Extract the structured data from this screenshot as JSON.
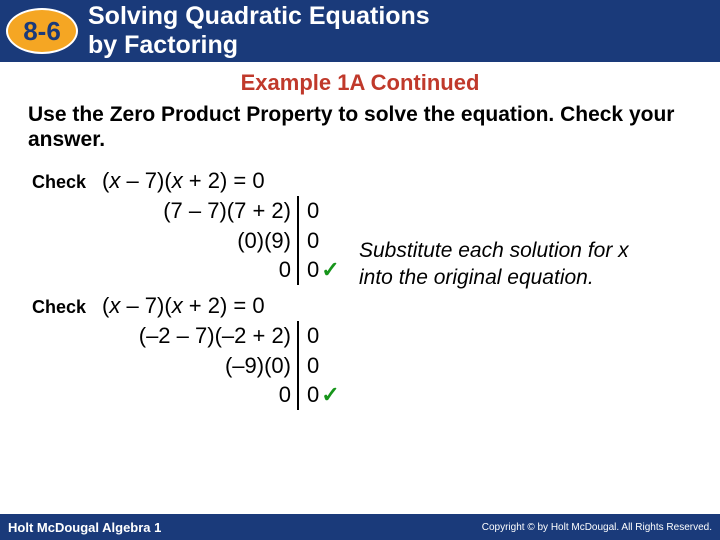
{
  "header": {
    "badge": "8-6",
    "title_line1": "Solving Quadratic Equations",
    "title_line2": "by Factoring"
  },
  "example_title": "Example 1A Continued",
  "instruction": "Use the Zero Product Property to solve the equation. Check your answer.",
  "check1": {
    "label": "Check",
    "r0_left_pre": "(",
    "r0_left_var1": "x",
    "r0_left_mid": " – 7)(",
    "r0_left_var2": "x",
    "r0_left_post": " + 2) = 0",
    "r1_left": "(7 – 7)(7 + 2)",
    "r1_right": "0",
    "r2_left": "(0)(9)",
    "r2_right": "0",
    "r3_left": "0",
    "r3_right": "0"
  },
  "check2": {
    "label": "Check",
    "r0_left_pre": "(",
    "r0_left_var1": "x",
    "r0_left_mid": " – 7)(",
    "r0_left_var2": "x",
    "r0_left_post": " + 2) = 0",
    "r1_left": "(–2 – 7)(–2 + 2)",
    "r1_right": "0",
    "r2_left": "(–9)(0)",
    "r2_right": "0",
    "r3_left": "0",
    "r3_right": "0"
  },
  "note": "Substitute each solution for x into the original equation.",
  "footer": {
    "left": "Holt McDougal Algebra 1",
    "right": "Copyright © by Holt McDougal. All Rights Reserved."
  },
  "colors": {
    "header_bg": "#1a3a7a",
    "badge_bg": "#f5a623",
    "title_red": "#c0392b",
    "check_green": "#17951b"
  }
}
